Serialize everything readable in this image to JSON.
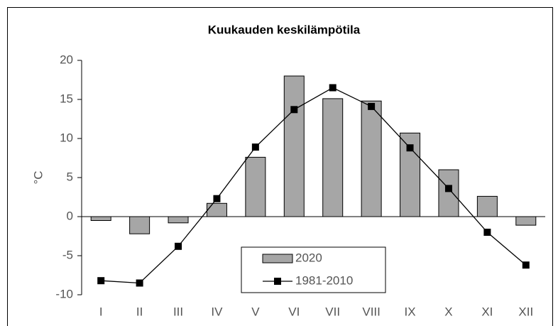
{
  "chart_data": {
    "type": "bar_line",
    "title": "Kuukauden keskilämpötila",
    "y_label": "°C",
    "categories": [
      "I",
      "II",
      "III",
      "IV",
      "V",
      "VI",
      "VII",
      "VIII",
      "IX",
      "X",
      "XI",
      "XII"
    ],
    "series": [
      {
        "name": "2020",
        "type": "bar",
        "color": "#a6a6a6",
        "values": [
          -0.5,
          -2.2,
          -0.8,
          1.7,
          7.6,
          18.0,
          15.1,
          14.8,
          10.7,
          6.0,
          2.6,
          -1.1
        ]
      },
      {
        "name": "1981-2010",
        "type": "line",
        "color": "#000000",
        "values": [
          -8.2,
          -8.5,
          -3.8,
          2.3,
          8.9,
          13.7,
          16.5,
          14.1,
          8.8,
          3.6,
          -2.0,
          -6.2
        ]
      }
    ],
    "ylim": [
      -10,
      20
    ],
    "yticks": [
      -10,
      -5,
      0,
      5,
      10,
      15,
      20
    ],
    "legend": "lower center"
  }
}
